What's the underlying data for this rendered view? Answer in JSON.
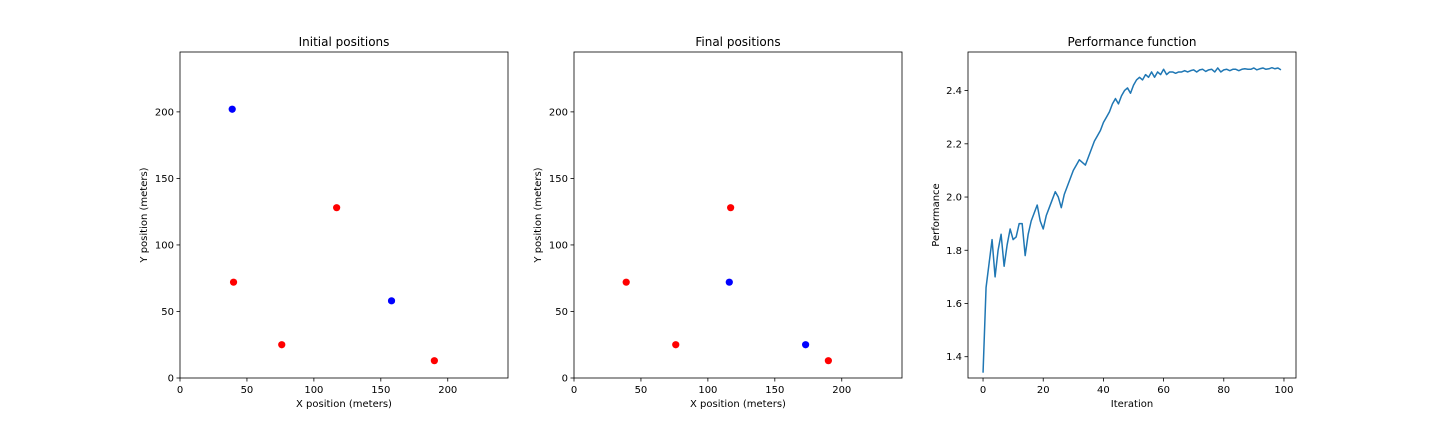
{
  "chart_data": [
    {
      "type": "scatter",
      "title": "Initial positions",
      "xlabel": "X position (meters)",
      "ylabel": "Y position (meters)",
      "xlim": [
        0,
        245
      ],
      "ylim": [
        0,
        245
      ],
      "xticks": [
        0,
        50,
        100,
        150,
        200
      ],
      "yticks": [
        0,
        50,
        100,
        150,
        200
      ],
      "grid": false,
      "series": [
        {
          "color": "#0000ff",
          "points": [
            {
              "x": 39,
              "y": 202
            },
            {
              "x": 158,
              "y": 58
            }
          ]
        },
        {
          "color": "#ff0000",
          "points": [
            {
              "x": 40,
              "y": 72
            },
            {
              "x": 76,
              "y": 25
            },
            {
              "x": 117,
              "y": 128
            },
            {
              "x": 190,
              "y": 13
            }
          ]
        }
      ]
    },
    {
      "type": "scatter",
      "title": "Final positions",
      "xlabel": "X position (meters)",
      "ylabel": "Y position (meters)",
      "xlim": [
        0,
        245
      ],
      "ylim": [
        0,
        245
      ],
      "xticks": [
        0,
        50,
        100,
        150,
        200
      ],
      "yticks": [
        0,
        50,
        100,
        150,
        200
      ],
      "grid": false,
      "series": [
        {
          "color": "#0000ff",
          "points": [
            {
              "x": 116,
              "y": 72
            },
            {
              "x": 173,
              "y": 25
            }
          ]
        },
        {
          "color": "#ff0000",
          "points": [
            {
              "x": 39,
              "y": 72
            },
            {
              "x": 76,
              "y": 25
            },
            {
              "x": 117,
              "y": 128
            },
            {
              "x": 190,
              "y": 13
            }
          ]
        }
      ]
    },
    {
      "type": "line",
      "title": "Performance function",
      "xlabel": "Iteration",
      "ylabel": "Performance",
      "xlim": [
        -5,
        104
      ],
      "ylim": [
        1.32,
        2.545
      ],
      "xticks": [
        0,
        20,
        40,
        60,
        80,
        100
      ],
      "yticks": [
        1.4,
        1.6,
        1.8,
        2.0,
        2.2,
        2.4
      ],
      "ytick_labels": [
        "1.4",
        "1.6",
        "1.8",
        "2.0",
        "2.2",
        "2.4"
      ],
      "grid": false,
      "series": [
        {
          "color": "#1f77b4",
          "x": [
            0,
            1,
            2,
            3,
            4,
            5,
            6,
            7,
            8,
            9,
            10,
            11,
            12,
            13,
            14,
            15,
            16,
            17,
            18,
            19,
            20,
            21,
            22,
            23,
            24,
            25,
            26,
            27,
            28,
            29,
            30,
            31,
            32,
            33,
            34,
            35,
            36,
            37,
            38,
            39,
            40,
            41,
            42,
            43,
            44,
            45,
            46,
            47,
            48,
            49,
            50,
            51,
            52,
            53,
            54,
            55,
            56,
            57,
            58,
            59,
            60,
            61,
            62,
            63,
            64,
            65,
            66,
            67,
            68,
            69,
            70,
            71,
            72,
            73,
            74,
            75,
            76,
            77,
            78,
            79,
            80,
            81,
            82,
            83,
            84,
            85,
            86,
            87,
            88,
            89,
            90,
            91,
            92,
            93,
            94,
            95,
            96,
            97,
            98,
            99
          ],
          "values": [
            1.34,
            1.66,
            1.75,
            1.84,
            1.7,
            1.8,
            1.86,
            1.74,
            1.82,
            1.88,
            1.84,
            1.85,
            1.9,
            1.9,
            1.78,
            1.86,
            1.91,
            1.94,
            1.97,
            1.91,
            1.88,
            1.93,
            1.96,
            1.99,
            2.02,
            2.0,
            1.96,
            2.01,
            2.04,
            2.07,
            2.1,
            2.12,
            2.14,
            2.13,
            2.12,
            2.15,
            2.18,
            2.21,
            2.23,
            2.25,
            2.28,
            2.3,
            2.32,
            2.35,
            2.37,
            2.35,
            2.38,
            2.4,
            2.41,
            2.39,
            2.42,
            2.44,
            2.45,
            2.44,
            2.46,
            2.45,
            2.47,
            2.45,
            2.47,
            2.46,
            2.48,
            2.46,
            2.47,
            2.47,
            2.465,
            2.47,
            2.47,
            2.475,
            2.47,
            2.475,
            2.478,
            2.47,
            2.478,
            2.48,
            2.472,
            2.478,
            2.48,
            2.47,
            2.485,
            2.47,
            2.478,
            2.48,
            2.475,
            2.48,
            2.48,
            2.475,
            2.48,
            2.482,
            2.48,
            2.48,
            2.485,
            2.478,
            2.482,
            2.485,
            2.48,
            2.482,
            2.486,
            2.482,
            2.485,
            2.478
          ]
        }
      ]
    }
  ]
}
